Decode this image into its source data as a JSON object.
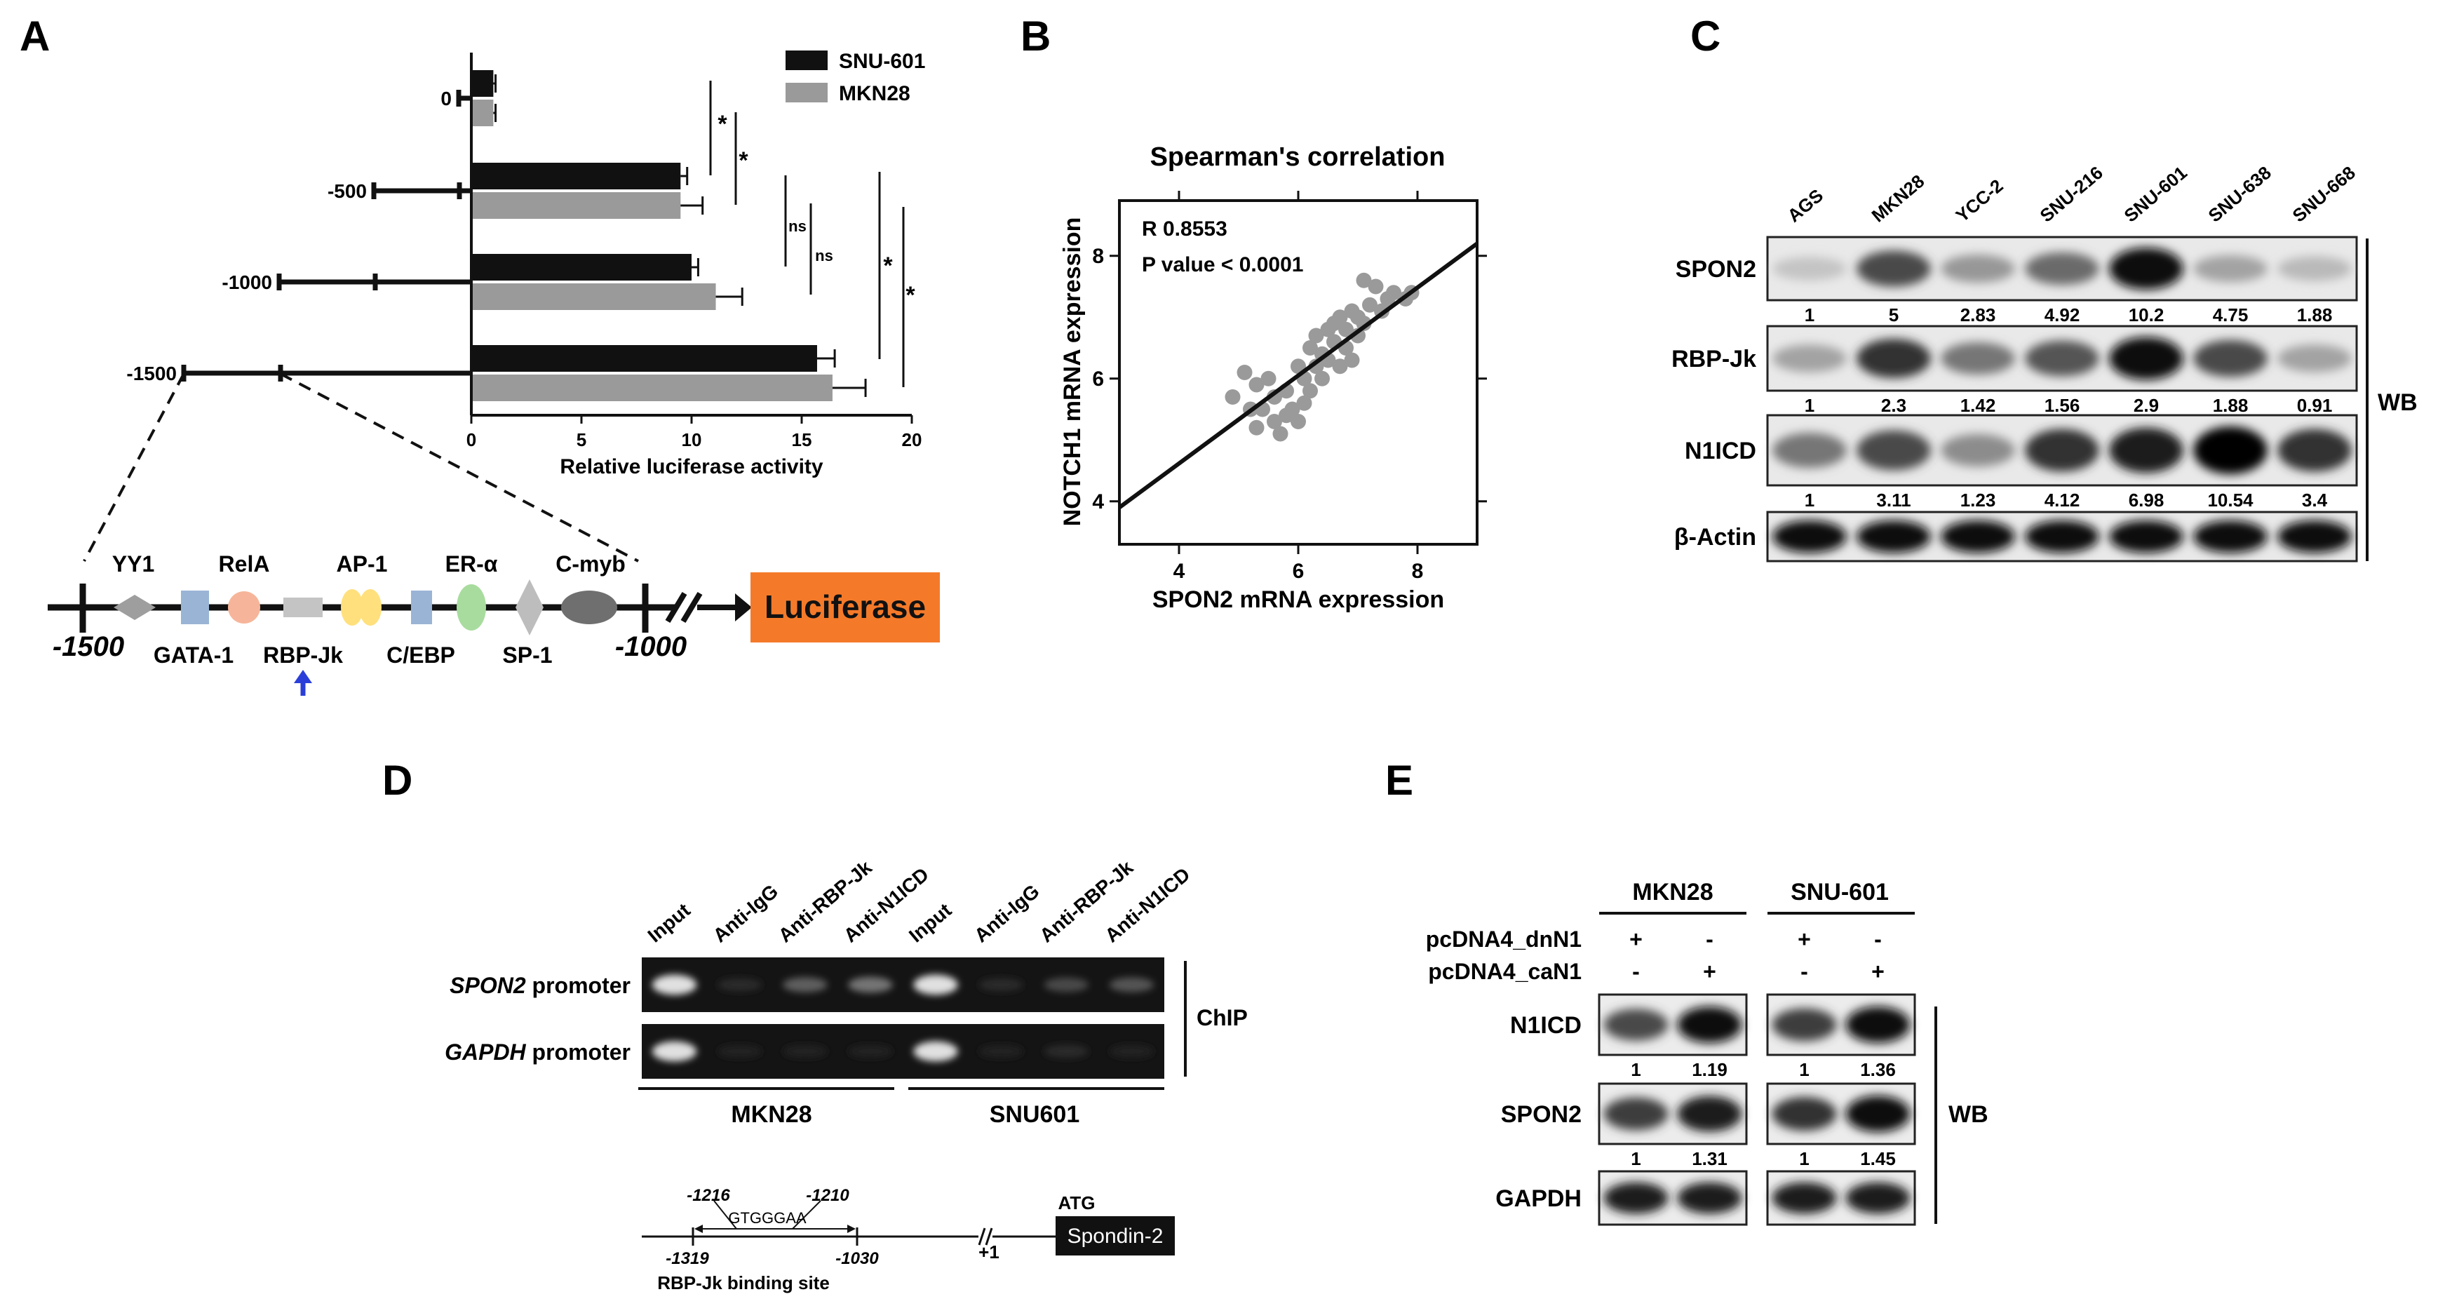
{
  "figure_labels": [
    "A",
    "B",
    "C",
    "D",
    "E"
  ],
  "chart_data": [
    {
      "type": "bar",
      "orientation": "horizontal",
      "categories": [
        "0",
        "-500",
        "-1000",
        "-1500"
      ],
      "series": [
        {
          "name": "SNU-601",
          "color": "#111111",
          "values": [
            1.0,
            9.5,
            10.0,
            15.7
          ],
          "errors": [
            0.1,
            0.3,
            0.3,
            0.8
          ]
        },
        {
          "name": "MKN28",
          "color": "#9a9a9a",
          "values": [
            1.0,
            9.5,
            11.1,
            16.4
          ],
          "errors": [
            0.1,
            1.0,
            1.2,
            1.5
          ]
        }
      ],
      "xlabel": "Relative luciferase activity",
      "xlim": [
        0,
        20
      ],
      "xticks": [
        "0",
        "5",
        "10",
        "15",
        "20"
      ],
      "legend_position": "top-right",
      "significance": [
        "*",
        "*",
        "ns",
        "ns",
        "*",
        "*"
      ]
    },
    {
      "type": "scatter",
      "title": "Spearman's correlation",
      "xlabel": "SPON2 mRNA expression",
      "ylabel": "NOTCH1 mRNA expression",
      "xlim": [
        3,
        9
      ],
      "ylim": [
        3.3,
        8.9
      ],
      "xticks": [
        "4",
        "6",
        "8"
      ],
      "yticks": [
        "4",
        "6",
        "8"
      ],
      "annotation_r": "R  0.8553",
      "annotation_p": "P value < 0.0001",
      "point_color": "#9a9a9a",
      "regression": {
        "x1": 3,
        "y1": 3.9,
        "x2": 9,
        "y2": 8.2
      },
      "points": [
        {
          "x": 4.9,
          "y": 5.7
        },
        {
          "x": 5.1,
          "y": 6.1
        },
        {
          "x": 5.2,
          "y": 5.5
        },
        {
          "x": 5.3,
          "y": 5.2
        },
        {
          "x": 5.3,
          "y": 5.9
        },
        {
          "x": 5.4,
          "y": 5.5
        },
        {
          "x": 5.5,
          "y": 6.0
        },
        {
          "x": 5.6,
          "y": 5.3
        },
        {
          "x": 5.6,
          "y": 5.7
        },
        {
          "x": 5.7,
          "y": 5.1
        },
        {
          "x": 5.8,
          "y": 5.4
        },
        {
          "x": 5.8,
          "y": 5.8
        },
        {
          "x": 5.9,
          "y": 5.5
        },
        {
          "x": 6.0,
          "y": 6.2
        },
        {
          "x": 6.0,
          "y": 5.3
        },
        {
          "x": 6.1,
          "y": 5.6
        },
        {
          "x": 6.1,
          "y": 6.0
        },
        {
          "x": 6.2,
          "y": 5.8
        },
        {
          "x": 6.2,
          "y": 6.5
        },
        {
          "x": 6.3,
          "y": 6.2
        },
        {
          "x": 6.3,
          "y": 6.7
        },
        {
          "x": 6.4,
          "y": 6.0
        },
        {
          "x": 6.4,
          "y": 6.4
        },
        {
          "x": 6.5,
          "y": 6.8
        },
        {
          "x": 6.5,
          "y": 6.3
        },
        {
          "x": 6.6,
          "y": 6.9
        },
        {
          "x": 6.6,
          "y": 6.6
        },
        {
          "x": 6.7,
          "y": 6.2
        },
        {
          "x": 6.7,
          "y": 7.0
        },
        {
          "x": 6.8,
          "y": 6.5
        },
        {
          "x": 6.8,
          "y": 6.8
        },
        {
          "x": 6.9,
          "y": 7.1
        },
        {
          "x": 6.9,
          "y": 6.3
        },
        {
          "x": 7.0,
          "y": 6.7
        },
        {
          "x": 7.0,
          "y": 7.0
        },
        {
          "x": 7.1,
          "y": 7.6
        },
        {
          "x": 7.1,
          "y": 6.9
        },
        {
          "x": 7.2,
          "y": 7.2
        },
        {
          "x": 7.3,
          "y": 7.5
        },
        {
          "x": 7.4,
          "y": 7.1
        },
        {
          "x": 7.5,
          "y": 7.3
        },
        {
          "x": 7.6,
          "y": 7.4
        },
        {
          "x": 7.8,
          "y": 7.3
        },
        {
          "x": 7.9,
          "y": 7.4
        }
      ]
    }
  ],
  "promoter_a": {
    "factors_top": [
      "YY1",
      "RelA",
      "AP-1",
      "ER-α",
      "C-myb"
    ],
    "factors_bottom": [
      "GATA-1",
      "RBP-Jk",
      "C/EBP",
      "SP-1"
    ],
    "start_label": "-1500",
    "end_label": "-1000",
    "reporter_label": "Luciferase",
    "reporter_color": "#f47a2a"
  },
  "western_c": {
    "cell_lines": [
      "AGS",
      "MKN28",
      "YCC-2",
      "SNU-216",
      "SNU-601",
      "SNU-638",
      "SNU-668"
    ],
    "rows": [
      {
        "label": "SPON2",
        "values": [
          "1",
          "5",
          "2.83",
          "4.92",
          "10.2",
          "4.75",
          "1.88"
        ],
        "intensity": [
          0.15,
          0.7,
          0.35,
          0.55,
          0.95,
          0.3,
          0.2
        ]
      },
      {
        "label": "RBP-Jk",
        "values": [
          "1",
          "2.3",
          "1.42",
          "1.56",
          "2.9",
          "1.88",
          "0.91"
        ],
        "intensity": [
          0.3,
          0.8,
          0.5,
          0.65,
          0.95,
          0.7,
          0.3
        ]
      },
      {
        "label": "N1ICD",
        "values": [
          "1",
          "3.11",
          "1.23",
          "4.12",
          "6.98",
          "10.54",
          "3.4"
        ],
        "intensity": [
          0.5,
          0.7,
          0.4,
          0.8,
          0.9,
          1.0,
          0.8
        ]
      },
      {
        "label": "β-Actin",
        "values": [],
        "intensity": [
          0.95,
          0.95,
          0.95,
          0.95,
          0.95,
          0.95,
          0.95
        ]
      }
    ],
    "side_label": "WB"
  },
  "chip_d": {
    "lanes": [
      "Input",
      "Anti-IgG",
      "Anti-RBP-Jk",
      "Anti-N1ICD",
      "Input",
      "Anti-IgG",
      "Anti-RBP-Jk",
      "Anti-N1ICD"
    ],
    "rows": [
      {
        "label_italic": "SPON2",
        "label_rest": " promoter",
        "intensity": [
          0.9,
          0.05,
          0.3,
          0.4,
          0.9,
          0.05,
          0.2,
          0.25
        ]
      },
      {
        "label_italic": "GAPDH",
        "label_rest": " promoter",
        "intensity": [
          0.9,
          0.02,
          0.03,
          0.03,
          0.9,
          0.02,
          0.06,
          0.03
        ]
      }
    ],
    "side_label": "ChIP",
    "groups": [
      "MKN28",
      "SNU601"
    ],
    "site": {
      "seq": "GTGGGAA",
      "top_left": "-1216",
      "top_right": "-1210",
      "bottom_left": "-1319",
      "bottom_right": "-1030",
      "plus_one": "+1",
      "atg": "ATG",
      "gene": "Spondin-2",
      "caption": "RBP-Jk binding site"
    }
  },
  "western_e": {
    "groups": [
      "MKN28",
      "SNU-601"
    ],
    "treatments": [
      {
        "label": "pcDNA4_dnN1",
        "marks": [
          "+",
          "-",
          "+",
          "-"
        ]
      },
      {
        "label": "pcDNA4_caN1",
        "marks": [
          "-",
          "+",
          "-",
          "+"
        ]
      }
    ],
    "rows": [
      {
        "label": "N1ICD",
        "values": [
          "1",
          "1.19",
          "1",
          "1.36"
        ],
        "intensity": [
          0.7,
          0.95,
          0.75,
          0.95
        ]
      },
      {
        "label": "SPON2",
        "values": [
          "1",
          "1.31",
          "1",
          "1.45"
        ],
        "intensity": [
          0.75,
          0.9,
          0.8,
          0.95
        ]
      },
      {
        "label": "GAPDH",
        "values": [],
        "intensity": [
          0.9,
          0.9,
          0.9,
          0.9
        ]
      }
    ],
    "side_label": "WB"
  }
}
